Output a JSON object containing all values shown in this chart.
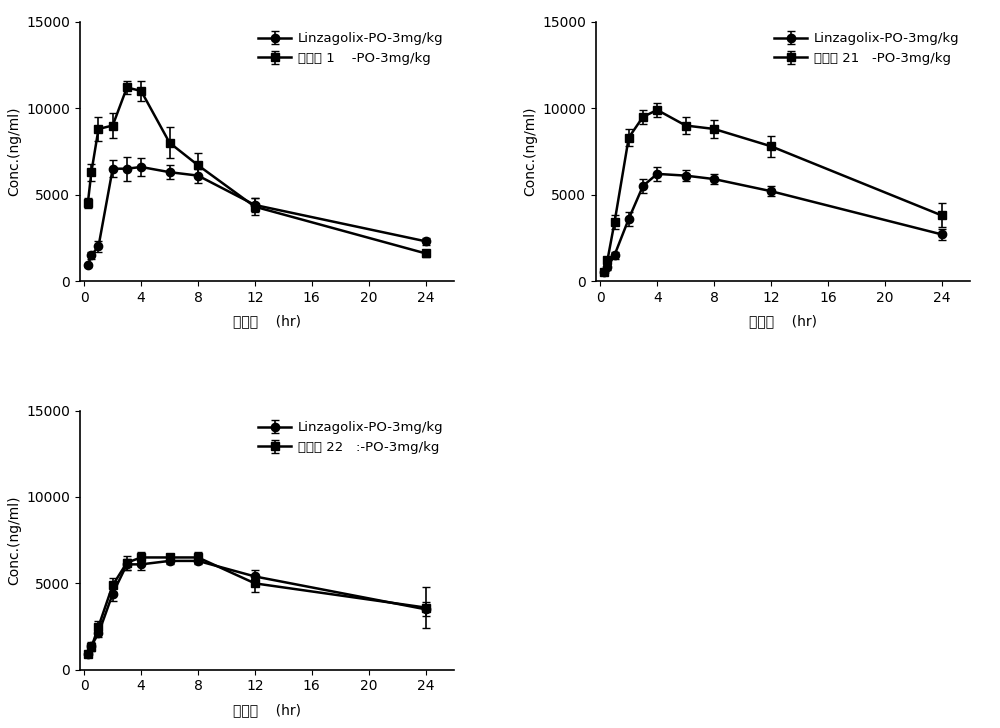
{
  "plots": [
    {
      "legend_lines": [
        "Linzagolix-PO-3mg/kg",
        "化合物 1    -PO-3mg/kg"
      ],
      "line1": {
        "x": [
          0.25,
          0.5,
          1,
          2,
          3,
          4,
          6,
          8,
          12,
          24
        ],
        "y": [
          900,
          1500,
          2000,
          6500,
          6500,
          6600,
          6300,
          6100,
          4400,
          2300
        ],
        "yerr": [
          100,
          200,
          300,
          500,
          700,
          500,
          400,
          400,
          400,
          200
        ]
      },
      "line2": {
        "x": [
          0.25,
          0.5,
          1,
          2,
          3,
          4,
          6,
          8,
          12,
          24
        ],
        "y": [
          4500,
          6300,
          8800,
          9000,
          11200,
          11000,
          8000,
          6700,
          4300,
          1600
        ],
        "yerr": [
          300,
          500,
          700,
          700,
          400,
          600,
          900,
          700,
          500,
          200
        ]
      }
    },
    {
      "legend_lines": [
        "Linzagolix-PO-3mg/kg",
        "化合物 21   -PO-3mg/kg"
      ],
      "line1": {
        "x": [
          0.25,
          0.5,
          1,
          2,
          3,
          4,
          6,
          8,
          12,
          24
        ],
        "y": [
          500,
          800,
          1500,
          3600,
          5500,
          6200,
          6100,
          5900,
          5200,
          2700
        ],
        "yerr": [
          100,
          150,
          200,
          400,
          400,
          400,
          300,
          300,
          300,
          300
        ]
      },
      "line2": {
        "x": [
          0.25,
          0.5,
          1,
          2,
          3,
          4,
          6,
          8,
          12,
          24
        ],
        "y": [
          500,
          1200,
          3400,
          8300,
          9500,
          9900,
          9000,
          8800,
          7800,
          3800
        ],
        "yerr": [
          100,
          200,
          400,
          500,
          400,
          400,
          500,
          500,
          600,
          700
        ]
      }
    },
    {
      "legend_lines": [
        "Linzagolix-PO-3mg/kg",
        "化合物 22   :-PO-3mg/kg"
      ],
      "line1": {
        "x": [
          0.25,
          0.5,
          1,
          2,
          3,
          4,
          6,
          8,
          12,
          24
        ],
        "y": [
          900,
          1400,
          2100,
          4400,
          6100,
          6100,
          6300,
          6300,
          5400,
          3500
        ],
        "yerr": [
          100,
          200,
          200,
          400,
          300,
          300,
          200,
          200,
          400,
          400
        ]
      },
      "line2": {
        "x": [
          0.25,
          0.5,
          1,
          2,
          3,
          4,
          6,
          8,
          12,
          24
        ],
        "y": [
          900,
          1300,
          2500,
          4900,
          6200,
          6500,
          6500,
          6500,
          5000,
          3600
        ],
        "yerr": [
          100,
          200,
          300,
          400,
          400,
          300,
          200,
          300,
          500,
          1200
        ]
      }
    }
  ],
  "xlabel_cn": "时间点",
  "xlabel_en": "(hr)",
  "ylabel": "Conc.(ng/ml)",
  "ylim": [
    0,
    15000
  ],
  "yticks": [
    0,
    5000,
    10000,
    15000
  ],
  "xticks": [
    0,
    4,
    8,
    12,
    16,
    20,
    24
  ],
  "xlim": [
    -0.3,
    26
  ],
  "line_color": "#000000",
  "marker1": "o",
  "marker2": "s",
  "markersize": 6,
  "linewidth": 1.8,
  "capsize": 3,
  "elinewidth": 1.2,
  "legend_fontsize": 9.5,
  "axis_fontsize": 10,
  "tick_fontsize": 10
}
